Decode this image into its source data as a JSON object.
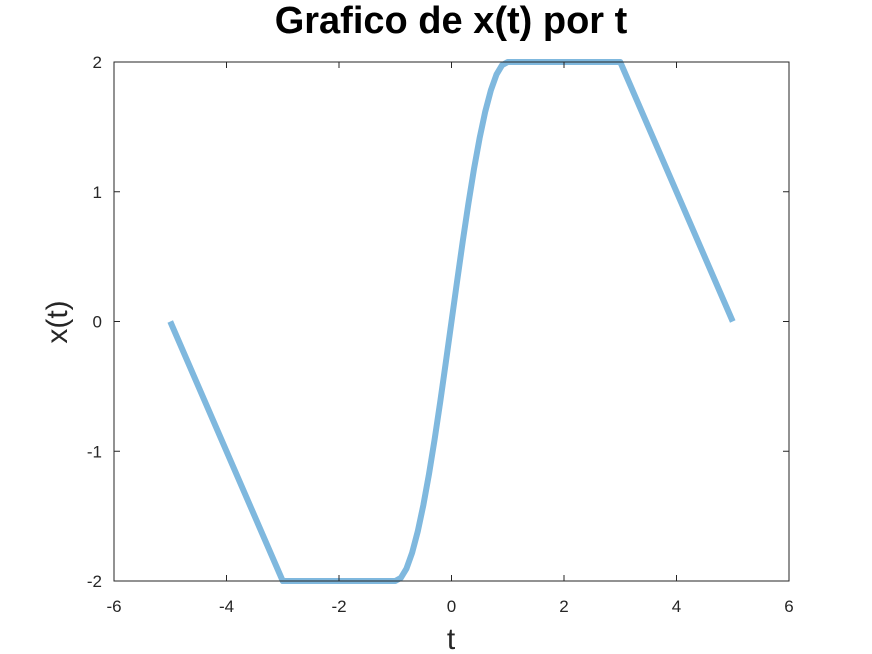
{
  "chart_data": {
    "type": "line",
    "title": "Grafico de x(t) por t",
    "xlabel": "t",
    "ylabel": "x(t)",
    "xlim": [
      -6,
      6
    ],
    "ylim": [
      -2,
      2
    ],
    "xticks": [
      -6,
      -4,
      -2,
      0,
      2,
      4,
      6
    ],
    "yticks": [
      -2,
      -1,
      0,
      1,
      2
    ],
    "xtick_labels": [
      "-6",
      "-4",
      "-2",
      "0",
      "2",
      "4",
      "6"
    ],
    "ytick_labels": [
      "-2",
      "-1",
      "0",
      "1",
      "2"
    ],
    "grid": false,
    "box": true,
    "series": [
      {
        "color": "#7fb8de",
        "x": [
          -5,
          -3,
          -1,
          -0.9,
          -0.8,
          -0.7,
          -0.6,
          -0.5,
          -0.4,
          -0.3,
          -0.2,
          -0.1,
          0,
          0.1,
          0.2,
          0.3,
          0.4,
          0.5,
          0.6,
          0.7,
          0.8,
          0.9,
          1,
          3,
          5
        ],
        "y": [
          0,
          -2,
          -2,
          -1.976,
          -1.904,
          -1.782,
          -1.618,
          -1.414,
          -1.176,
          -0.908,
          -0.618,
          -0.312,
          0,
          0.312,
          0.618,
          0.908,
          1.176,
          1.414,
          1.618,
          1.782,
          1.904,
          1.976,
          2,
          2,
          0
        ]
      }
    ]
  }
}
